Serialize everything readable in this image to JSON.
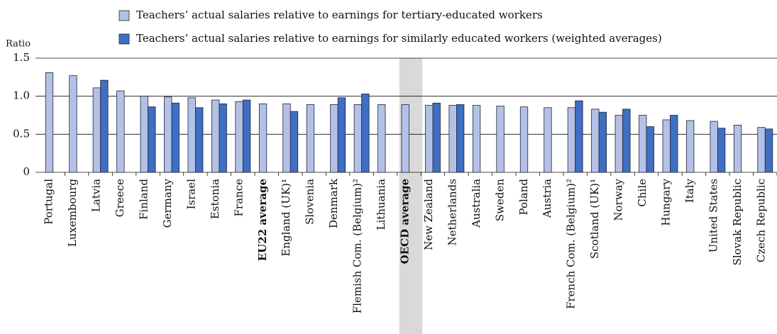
{
  "chart_data": {
    "type": "bar",
    "y_axis_label": "Ratio",
    "categories": [
      "Portugal",
      "Luxembourg",
      "Latvia",
      "Greece",
      "Finland",
      "Germany",
      "Israel",
      "Estonia",
      "France",
      "EU22 average",
      "England (UK)¹",
      "Slovenia",
      "Denmark",
      "Flemish Com. (Belgium)²",
      "Lithuania",
      "OECD average",
      "New Zealand",
      "Netherlands",
      "Australia",
      "Sweden",
      "Poland",
      "Austria",
      "French Com. (Belgium)²",
      "Scotland (UK)¹",
      "Norway",
      "Chile",
      "Hungary",
      "Italy",
      "United States",
      "Slovak Republic",
      "Czech Republic"
    ],
    "series": [
      {
        "name": "Teachers’ actual salaries relative to earnings for tertiary-educated workers",
        "color": "#b4c1e6",
        "values": [
          1.31,
          1.27,
          1.11,
          1.07,
          1.0,
          0.99,
          0.98,
          0.95,
          0.93,
          0.9,
          0.9,
          0.89,
          0.89,
          0.89,
          0.89,
          0.89,
          0.88,
          0.88,
          0.88,
          0.87,
          0.86,
          0.85,
          0.85,
          0.83,
          0.75,
          0.75,
          0.69,
          0.68,
          0.67,
          0.62,
          0.59
        ]
      },
      {
        "name": "Teachers’ actual salaries relative to earnings for similarly educated workers (weighted averages)",
        "color": "#3f6fc4",
        "values": [
          null,
          null,
          1.21,
          null,
          0.86,
          0.91,
          0.85,
          0.9,
          0.95,
          null,
          0.8,
          null,
          0.98,
          1.03,
          null,
          null,
          0.91,
          0.89,
          null,
          null,
          null,
          null,
          0.94,
          0.79,
          0.83,
          0.6,
          0.75,
          null,
          0.58,
          null,
          0.57
        ]
      }
    ],
    "ylim": [
      0,
      1.5
    ],
    "yticks": [
      0,
      0.5,
      {
        "value": 1,
        "label": "1.0"
      },
      1.5
    ],
    "grid": true,
    "bold_categories": [
      "EU22 average",
      "OECD average"
    ],
    "highlight_category": "OECD average"
  }
}
